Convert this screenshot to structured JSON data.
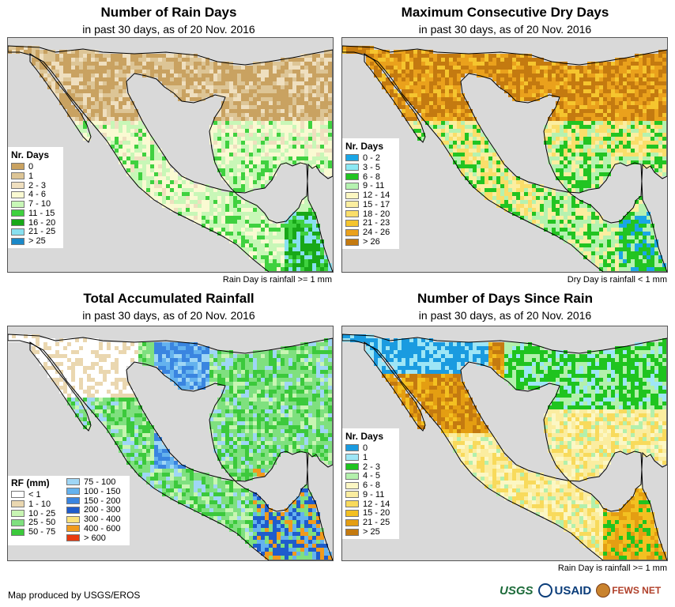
{
  "panels": [
    {
      "title": "Number of Rain Days",
      "subtitle": "in past 30 days, as of 20 Nov. 2016",
      "note": "Rain Day is rainfall >= 1 mm",
      "legend": {
        "title": "Nr. Days",
        "items": [
          {
            "label": "0",
            "color": "#c9a261"
          },
          {
            "label": "1",
            "color": "#ddc596"
          },
          {
            "label": "2 - 3",
            "color": "#efdfbf"
          },
          {
            "label": "4 - 6",
            "color": "#fafad2"
          },
          {
            "label": "7 - 10",
            "color": "#c8f7b7"
          },
          {
            "label": "11 - 15",
            "color": "#3fd13f"
          },
          {
            "label": "16 - 20",
            "color": "#18a818"
          },
          {
            "label": "21 - 25",
            "color": "#88e0f0"
          },
          {
            "label": "> 25",
            "color": "#1a88c8"
          }
        ]
      }
    },
    {
      "title": "Maximum Consecutive Dry Days",
      "subtitle": "in past 30 days, as of 20 Nov. 2016",
      "note": "Dry Day is rainfall < 1 mm",
      "legend": {
        "title": "Nr. Days",
        "items": [
          {
            "label": "0 - 2",
            "color": "#1aa6e6"
          },
          {
            "label": "3 - 5",
            "color": "#8ce8f4"
          },
          {
            "label": "6 - 8",
            "color": "#22c422"
          },
          {
            "label": "9 - 11",
            "color": "#b5f2b0"
          },
          {
            "label": "12 - 14",
            "color": "#fcf7c2"
          },
          {
            "label": "15 - 17",
            "color": "#fbeea0"
          },
          {
            "label": "18 - 20",
            "color": "#fade6a"
          },
          {
            "label": "21 - 23",
            "color": "#f5c52e"
          },
          {
            "label": "24 - 26",
            "color": "#eaa11c"
          },
          {
            "label": "> 26",
            "color": "#c47a10"
          }
        ]
      }
    },
    {
      "title": "Total Accumulated Rainfall",
      "subtitle": "in past 30 days, as of 20 Nov. 2016",
      "note": "",
      "legend": {
        "title": "RF (mm)",
        "col1": [
          {
            "label": "< 1",
            "color": "#ffffff"
          },
          {
            "label": "1 - 10",
            "color": "#ead7b0"
          },
          {
            "label": "10 - 25",
            "color": "#c8f5b3"
          },
          {
            "label": "25 - 50",
            "color": "#7fe07f"
          },
          {
            "label": "50 - 75",
            "color": "#3cc93c"
          }
        ],
        "col2": [
          {
            "label": "75 - 100",
            "color": "#9fd6f5"
          },
          {
            "label": "100 - 150",
            "color": "#64b2ee"
          },
          {
            "label": "150 - 200",
            "color": "#3a85e0"
          },
          {
            "label": "200 - 300",
            "color": "#1f5ccc"
          },
          {
            "label": "300 - 400",
            "color": "#fbe27a"
          },
          {
            "label": "400 - 600",
            "color": "#f19a1c"
          },
          {
            "label": "> 600",
            "color": "#e83a0f"
          }
        ]
      }
    },
    {
      "title": "Number of Days Since Rain",
      "subtitle": "in past 30 days, as of 20 Nov. 2016",
      "note": "Rain Day is rainfall >= 1 mm",
      "legend": {
        "title": "Nr. Days",
        "items": [
          {
            "label": "0",
            "color": "#1a9be0"
          },
          {
            "label": "1",
            "color": "#9ee6f6"
          },
          {
            "label": "2 - 3",
            "color": "#1fc41f"
          },
          {
            "label": "4 - 5",
            "color": "#b3f0ac"
          },
          {
            "label": "6 - 8",
            "color": "#fcf7c4"
          },
          {
            "label": "9 - 11",
            "color": "#fbeda0"
          },
          {
            "label": "12 - 14",
            "color": "#f8da5c"
          },
          {
            "label": "15 - 20",
            "color": "#f3c021"
          },
          {
            "label": "21 - 25",
            "color": "#e49e12"
          },
          {
            "label": "> 25",
            "color": "#c47a10"
          }
        ]
      }
    }
  ],
  "credit": "Map produced by USGS/EROS",
  "logos": {
    "usgs": "USGS",
    "usaid": "USAID",
    "fews": "FEWS NET"
  },
  "colors": {
    "ocean": "#d9d9d9",
    "border": "#000000"
  }
}
